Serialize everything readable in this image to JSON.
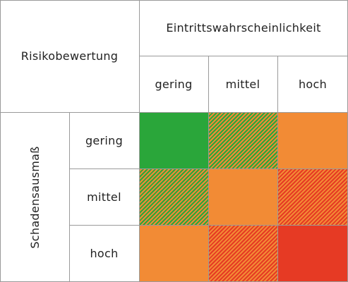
{
  "corner_label": "Risikobewertung",
  "column_group_label": "Eintrittswahrscheinlichkeit",
  "row_group_label": "Schadensausmaß",
  "columns": [
    "gering",
    "mittel",
    "hoch"
  ],
  "rows": [
    "gering",
    "mittel",
    "hoch"
  ],
  "colors": {
    "green": "#2aa63a",
    "orange": "#f28b35",
    "red": "#e63a24",
    "grid": "#9a9a9a"
  },
  "matrix": [
    [
      "green",
      "green-orange",
      "orange"
    ],
    [
      "green-orange",
      "orange",
      "orange-red"
    ],
    [
      "orange",
      "orange-red",
      "red"
    ]
  ]
}
